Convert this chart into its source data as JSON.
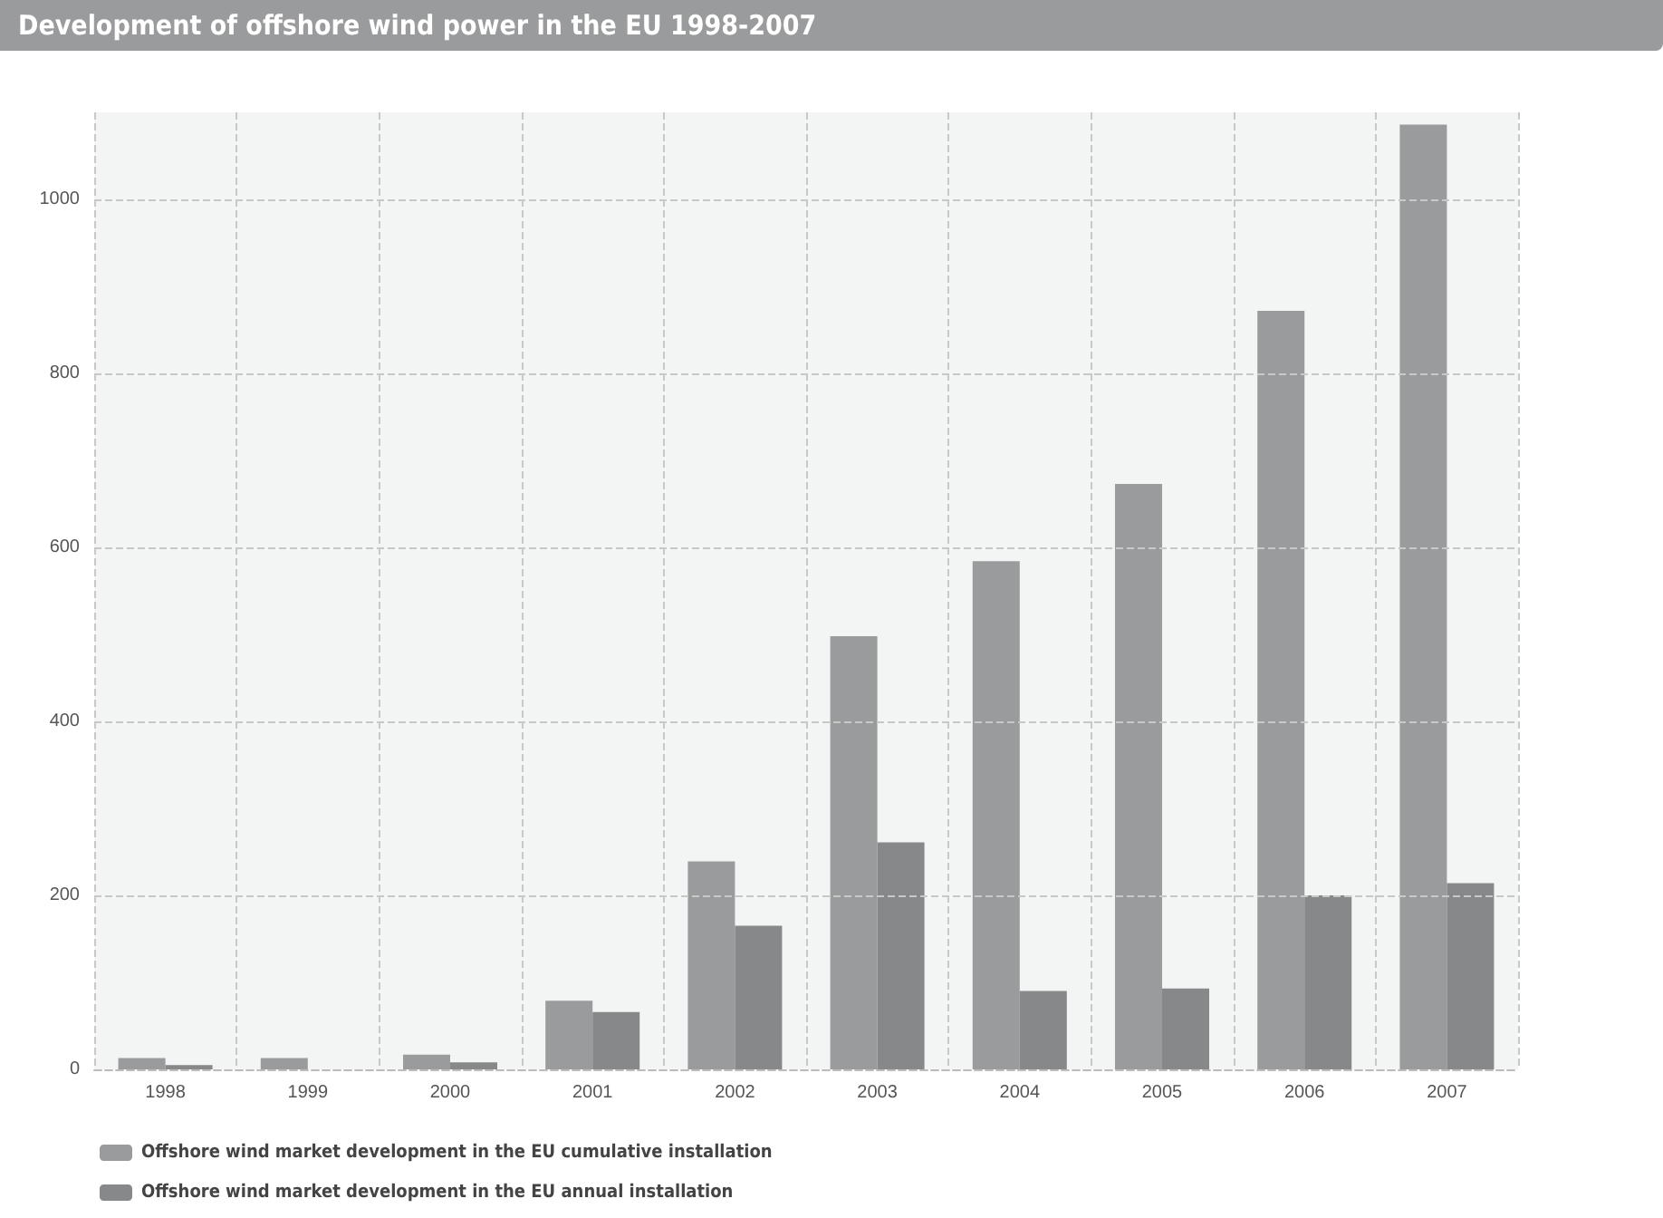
{
  "chart_data": {
    "type": "bar",
    "title": "Development of offshore wind power in the EU 1998-2007",
    "categories": [
      "1998",
      "1999",
      "2000",
      "2001",
      "2002",
      "2003",
      "2004",
      "2005",
      "2006",
      "2007"
    ],
    "series": [
      {
        "name": "Offshore wind market development in the EU cumulative installation",
        "color": "#9a9b9d",
        "values": [
          13,
          13,
          17,
          79,
          239,
          498,
          584,
          673,
          872,
          1086
        ]
      },
      {
        "name": "Offshore wind market development in the EU annual installation",
        "color": "#87888a",
        "values": [
          5,
          0,
          8,
          66,
          165,
          261,
          90,
          93,
          200,
          214
        ]
      }
    ],
    "ylim": [
      0,
      1100
    ],
    "yticks": [
      0,
      200,
      400,
      600,
      800,
      1000
    ],
    "grid": true,
    "legend": "bottom left"
  }
}
